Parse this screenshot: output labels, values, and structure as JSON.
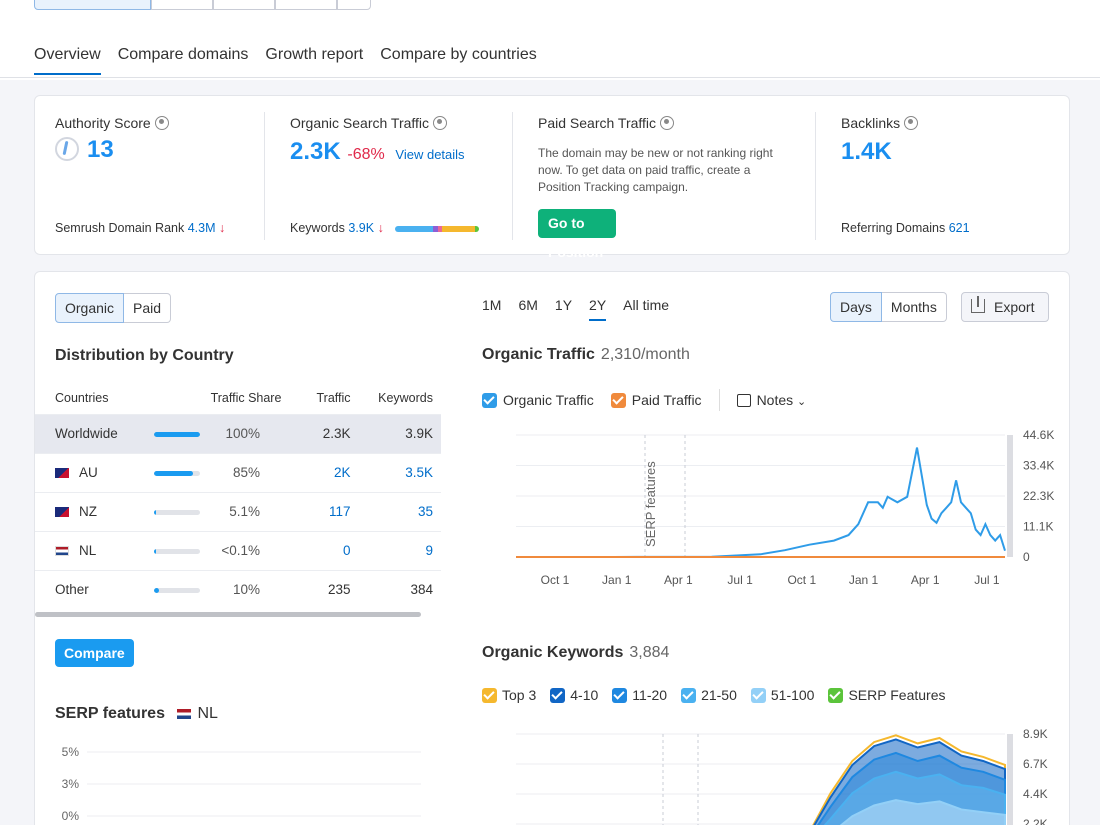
{
  "tabs": [
    {
      "label": "Overview",
      "active": true
    },
    {
      "label": "Compare domains",
      "active": false
    },
    {
      "label": "Growth report",
      "active": false
    },
    {
      "label": "Compare by countries",
      "active": false
    }
  ],
  "kpis": {
    "authority": {
      "label": "Authority Score",
      "value": "13",
      "sub_label": "Semrush Domain Rank",
      "sub_value": "4.3M",
      "sub_arrow": "↓"
    },
    "organic": {
      "label": "Organic Search Traffic",
      "value": "2.3K",
      "change": "-68%",
      "link": "View details",
      "sub_label": "Keywords",
      "sub_value": "3.9K",
      "sub_arrow": "↓"
    },
    "paid": {
      "label": "Paid Search Traffic",
      "desc": "The domain may be new or not ranking right now. To get data on paid traffic, create a Position Tracking campaign.",
      "button": "Go to Position Tracking"
    },
    "backlinks": {
      "label": "Backlinks",
      "value": "1.4K",
      "sub_label": "Referring Domains",
      "sub_value": "621"
    }
  },
  "toggle": {
    "organic": "Organic",
    "paid": "Paid"
  },
  "distribution": {
    "title": "Distribution by Country",
    "headers": [
      "Countries",
      "Traffic Share",
      "Traffic",
      "Keywords"
    ],
    "rows": [
      {
        "country": "Worldwide",
        "flag": "",
        "share": "100%",
        "share_frac": 1.0,
        "traffic": "2.3K",
        "keywords": "3.9K",
        "highlight": true
      },
      {
        "country": "AU",
        "flag": "au",
        "share": "85%",
        "share_frac": 0.85,
        "traffic": "2K",
        "keywords": "3.5K",
        "highlight": false
      },
      {
        "country": "NZ",
        "flag": "nz",
        "share": "5.1%",
        "share_frac": 0.05,
        "traffic": "117",
        "keywords": "35",
        "highlight": false
      },
      {
        "country": "NL",
        "flag": "nl",
        "share": "<0.1%",
        "share_frac": 0.0,
        "traffic": "0",
        "keywords": "9",
        "highlight": false
      },
      {
        "country": "Other",
        "flag": "",
        "share": "10%",
        "share_frac": 0.1,
        "traffic": "235",
        "keywords": "384",
        "highlight": false
      }
    ],
    "compare_button": "Compare"
  },
  "serp": {
    "title": "SERP features",
    "country": "NL",
    "ticks": [
      "5%",
      "3%",
      "0%"
    ]
  },
  "range": {
    "items": [
      "1M",
      "6M",
      "1Y",
      "2Y",
      "All time"
    ],
    "active": "2Y"
  },
  "granularity": {
    "days": "Days",
    "months": "Months"
  },
  "export_label": "Export",
  "organic_traffic": {
    "title": "Organic Traffic",
    "value": "2,310/month",
    "legend": [
      {
        "label": "Organic Traffic",
        "color": "#2f9ce8"
      },
      {
        "label": "Paid Traffic",
        "color": "#f08a3c"
      }
    ],
    "notes": "Notes",
    "annotation": "SERP features"
  },
  "organic_keywords": {
    "title": "Organic Keywords",
    "value": "3,884",
    "legend": [
      {
        "label": "Top 3",
        "color": "#f5b82e"
      },
      {
        "label": "4-10",
        "color": "#1166c5"
      },
      {
        "label": "11-20",
        "color": "#1f88e0"
      },
      {
        "label": "21-50",
        "color": "#4ab1f0"
      },
      {
        "label": "51-100",
        "color": "#93d0f7"
      },
      {
        "label": "SERP Features",
        "color": "#5bc43b"
      }
    ]
  },
  "chart_data": [
    {
      "type": "line",
      "title": "Organic Traffic",
      "x_ticks": [
        "Oct 1",
        "Jan 1",
        "Apr 1",
        "Jul 1",
        "Oct 1",
        "Jan 1",
        "Apr 1",
        "Jul 1"
      ],
      "y_ticks": [
        "44.6K",
        "33.4K",
        "22.3K",
        "11.1K",
        "0"
      ],
      "ylim": [
        0,
        44600
      ],
      "series": [
        {
          "name": "Organic Traffic",
          "color": "#2f9ce8",
          "x": [
            0,
            20,
            40,
            50,
            55,
            60,
            65,
            68,
            70,
            72,
            74,
            75,
            76,
            78,
            80,
            82,
            84,
            85,
            86,
            87,
            88,
            89,
            90,
            91,
            92,
            93,
            94,
            95,
            96,
            97,
            98,
            99,
            100
          ],
          "values": [
            0,
            0,
            100,
            1000,
            2500,
            4500,
            6000,
            8000,
            12000,
            20000,
            20000,
            18000,
            22000,
            20000,
            22000,
            40000,
            19000,
            14000,
            12500,
            16000,
            18000,
            20000,
            28000,
            20000,
            18000,
            16000,
            10000,
            8000,
            12000,
            8000,
            6000,
            8000,
            2300
          ]
        },
        {
          "name": "Paid Traffic",
          "color": "#f08a3c",
          "x": [
            0,
            100
          ],
          "values": [
            0,
            0
          ]
        }
      ]
    },
    {
      "type": "area",
      "title": "Organic Keywords",
      "y_ticks": [
        "8.9K",
        "6.7K",
        "4.4K",
        "2.2K"
      ],
      "ylim": [
        0,
        8900
      ],
      "series": [
        {
          "name": "Top 3",
          "color": "#f5b82e",
          "values": [
            0,
            300,
            1500,
            4500,
            6900,
            8300,
            8800,
            8200,
            8600,
            7600,
            7200,
            6600
          ]
        },
        {
          "name": "4-10",
          "color": "#1166c5",
          "values": [
            0,
            280,
            1400,
            4200,
            6600,
            8000,
            8500,
            7900,
            8300,
            7300,
            6900,
            6300
          ]
        },
        {
          "name": "11-20",
          "color": "#1f88e0",
          "values": [
            0,
            220,
            1100,
            3500,
            5700,
            7000,
            7500,
            6900,
            7300,
            6400,
            6100,
            5500
          ]
        },
        {
          "name": "21-50",
          "color": "#4ab1f0",
          "values": [
            0,
            150,
            800,
            2600,
            4500,
            5600,
            6100,
            5600,
            5900,
            5100,
            4900,
            4400
          ]
        },
        {
          "name": "51-100",
          "color": "#93d0f7",
          "values": [
            0,
            80,
            400,
            1500,
            2800,
            3600,
            4000,
            3700,
            3900,
            3300,
            3100,
            2900
          ]
        }
      ]
    }
  ]
}
